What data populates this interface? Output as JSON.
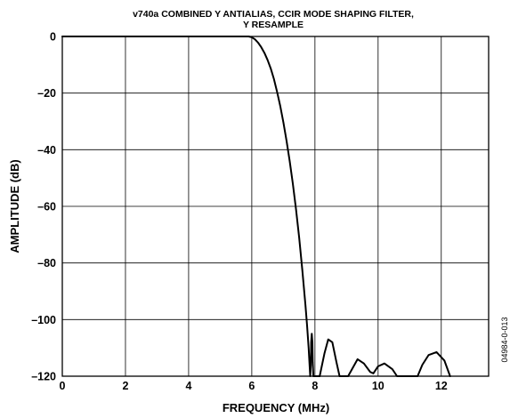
{
  "chart_data": {
    "type": "line",
    "title_line1": "v740a COMBINED Y ANTIALIAS, CCIR MODE SHAPING FILTER,",
    "title_line2": "Y RESAMPLE",
    "xlabel": "FREQUENCY (MHz)",
    "ylabel": "AMPLITUDE (dB)",
    "figure_id": "04984-0-013",
    "xlim": [
      0,
      13.5
    ],
    "ylim": [
      -120,
      0
    ],
    "xticks": [
      0,
      2,
      4,
      6,
      8,
      10,
      12
    ],
    "yticks": [
      0,
      -20,
      -40,
      -60,
      -80,
      -100,
      -120
    ],
    "xtick_labels": [
      "0",
      "2",
      "4",
      "6",
      "8",
      "10",
      "12"
    ],
    "ytick_labels": [
      "0",
      "–20",
      "–40",
      "–60",
      "–80",
      "–100",
      "–120"
    ],
    "grid": true,
    "series": [
      {
        "x": [
          0,
          5.8,
          5.9,
          6.0,
          6.1,
          6.2,
          6.3,
          6.4,
          6.5,
          6.6,
          6.7,
          6.8,
          6.9,
          7.0,
          7.1,
          7.2,
          7.3,
          7.4,
          7.5,
          7.6,
          7.7,
          7.75,
          7.8,
          7.83,
          7.85,
          7.87,
          7.88,
          7.9,
          7.92,
          7.93,
          7.95,
          8.0,
          8.15,
          8.3,
          8.42,
          8.55,
          8.68,
          8.78,
          9.05,
          9.15,
          9.35,
          9.55,
          9.75,
          9.85,
          10.0,
          10.2,
          10.45,
          10.6,
          11.25,
          11.4,
          11.6,
          11.85,
          12.1,
          12.28
        ],
        "y": [
          0,
          0,
          0,
          -0.3,
          -1.0,
          -2.2,
          -3.8,
          -5.8,
          -8.3,
          -11.3,
          -15.0,
          -19.5,
          -24.5,
          -30.3,
          -36.8,
          -44.0,
          -52.0,
          -61.0,
          -71.0,
          -82.5,
          -95.0,
          -102.0,
          -110.0,
          -116.0,
          -120.0,
          -116.0,
          -108.0,
          -105.0,
          -108.0,
          -115.0,
          -120.0,
          -120.0,
          -120.0,
          -112.0,
          -107.0,
          -108.0,
          -115.0,
          -120.0,
          -120.0,
          -118.0,
          -114.0,
          -115.5,
          -118.5,
          -119.0,
          -116.5,
          -115.5,
          -117.5,
          -120.0,
          -120.0,
          -116.0,
          -112.5,
          -111.5,
          -114.5,
          -120.0
        ]
      }
    ]
  }
}
